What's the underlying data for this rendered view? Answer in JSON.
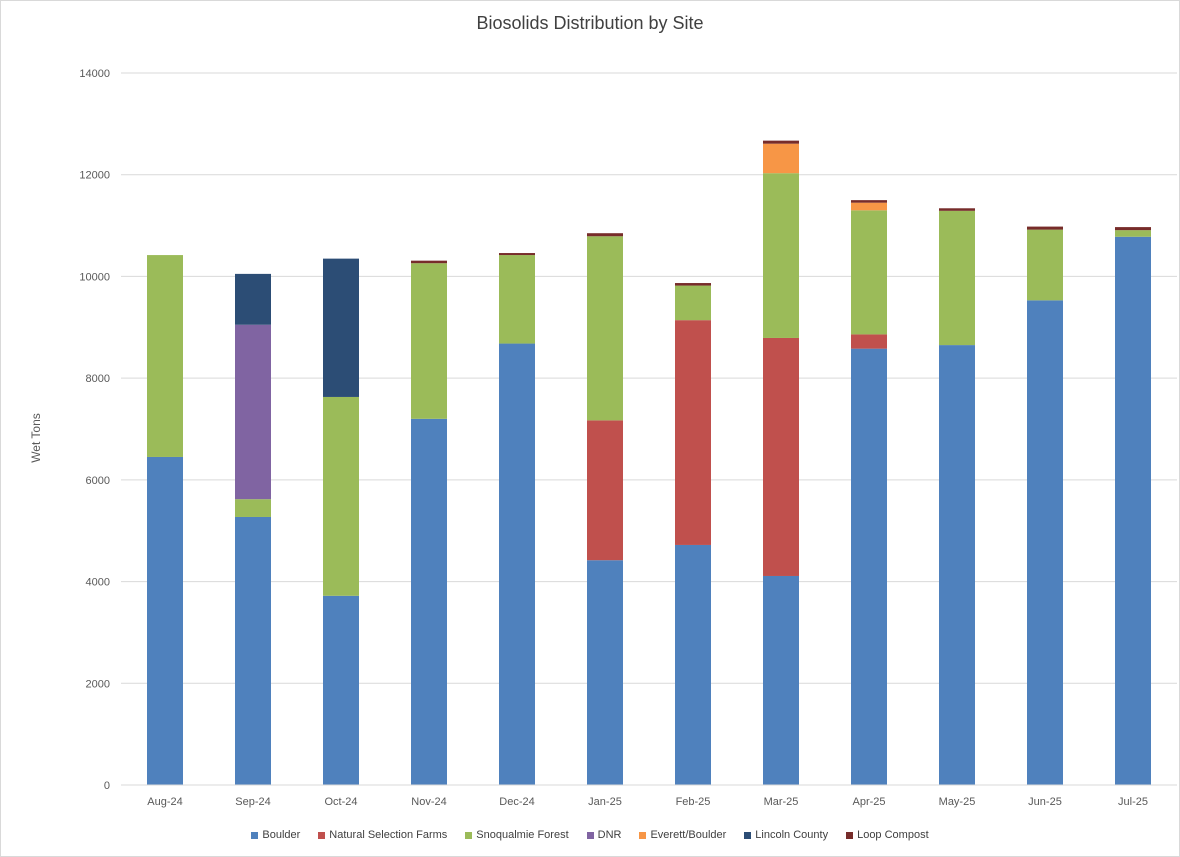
{
  "chart_data": {
    "type": "bar",
    "stacked": true,
    "title": "Biosolids Distribution by Site",
    "xlabel": "",
    "ylabel": "Wet Tons",
    "ylim": [
      0,
      14000
    ],
    "yticks": [
      0,
      2000,
      4000,
      6000,
      8000,
      10000,
      12000,
      14000
    ],
    "grid": true,
    "legend_position": "bottom",
    "categories": [
      "Aug-24",
      "Sep-24",
      "Oct-24",
      "Nov-24",
      "Dec-24",
      "Jan-25",
      "Feb-25",
      "Mar-25",
      "Apr-25",
      "May-25",
      "Jun-25",
      "Jul-25"
    ],
    "series": [
      {
        "name": "Boulder",
        "color": "#4f81bd",
        "values": [
          6450,
          5270,
          3720,
          7200,
          8680,
          4420,
          4720,
          4110,
          8580,
          8650,
          9530,
          10780
        ]
      },
      {
        "name": "Natural Selection Farms",
        "color": "#c0504d",
        "values": [
          0,
          0,
          0,
          0,
          0,
          2750,
          4420,
          4680,
          280,
          0,
          0,
          0
        ]
      },
      {
        "name": "Snoqualmie Forest",
        "color": "#9bbb59",
        "values": [
          3970,
          350,
          3910,
          3060,
          1740,
          3620,
          680,
          3240,
          2440,
          2640,
          1390,
          130
        ]
      },
      {
        "name": "DNR",
        "color": "#8064a2",
        "values": [
          0,
          3430,
          0,
          0,
          0,
          0,
          0,
          0,
          0,
          0,
          0,
          0
        ]
      },
      {
        "name": "Everett/Boulder",
        "color": "#f79646",
        "values": [
          0,
          0,
          0,
          0,
          0,
          0,
          0,
          580,
          150,
          0,
          0,
          0
        ]
      },
      {
        "name": "Lincoln County",
        "color": "#2c4d75",
        "values": [
          0,
          1000,
          2720,
          0,
          0,
          0,
          0,
          0,
          0,
          0,
          0,
          0
        ]
      },
      {
        "name": "Loop Compost",
        "color": "#772c2a",
        "values": [
          0,
          0,
          0,
          50,
          40,
          60,
          50,
          60,
          50,
          50,
          60,
          60
        ]
      }
    ]
  }
}
